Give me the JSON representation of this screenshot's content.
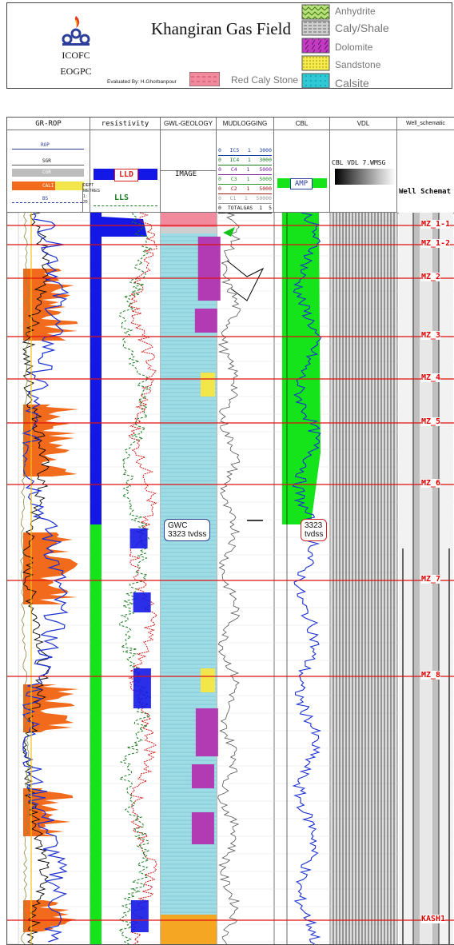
{
  "header": {
    "org_line1": "ICOFC",
    "org_line2": "EOGPC",
    "title": "Khangiran Gas Field",
    "evaluated_by": "Evaluated By: H.Ghorbanpour",
    "legend": [
      {
        "label": "Anhydrite",
        "color": "#8fd14f"
      },
      {
        "label": "Caly/Shale",
        "color": "#bdbdbd"
      },
      {
        "label": "Dolomite",
        "color": "#b23ab2"
      },
      {
        "label": "Sandstone",
        "color": "#f3e64a"
      },
      {
        "label": "Calsite",
        "color": "#33c6d4"
      },
      {
        "label": "Red Caly Stone",
        "color": "#f08a9c"
      }
    ]
  },
  "tracks": {
    "gr_rop": {
      "title": "GR-ROP",
      "curves": [
        "ROP",
        "SGR",
        "CGR",
        "CALI",
        "BS"
      ],
      "depth_label": "DEPT METRES",
      "depth_scale": "1 : 20"
    },
    "resistivity": {
      "title": "resistivity",
      "curve1": "LLD",
      "curve2": "LLS"
    },
    "geology": {
      "title": "GWL-GEOLOGY",
      "curve": "IMAGE"
    },
    "mudlogging": {
      "title": "MUDLOGGING",
      "rows": [
        {
          "left": "0",
          "name": "IC5",
          "scale": "1",
          "right": "3000",
          "color": "#1a3fa0"
        },
        {
          "left": "0",
          "name": "IC4",
          "scale": "1",
          "right": "3000",
          "color": "#1a7a20"
        },
        {
          "left": "0",
          "name": "C4",
          "scale": "1",
          "right": "5000",
          "color": "#7a1aa0"
        },
        {
          "left": "0",
          "name": "C3",
          "scale": "1",
          "right": "5000",
          "color": "#2a9a2a"
        },
        {
          "left": "0",
          "name": "C2",
          "scale": "1",
          "right": "5000",
          "color": "#a01a1a"
        },
        {
          "left": "0",
          "name": "C1",
          "scale": "1",
          "right": "50000",
          "color": "#999999"
        },
        {
          "left": "0",
          "name": "TOTALGAS",
          "scale": "1",
          "right": "5",
          "color": "#111111"
        }
      ]
    },
    "cbl": {
      "title": "CBL",
      "curve": "AMP"
    },
    "vdl": {
      "title": "VDL",
      "curve": "CBL VDL 7.WMSG"
    },
    "well": {
      "title": "Well_schematic",
      "curve": "Well Schemat"
    }
  },
  "zones": [
    {
      "label": "MZ_1-1"
    },
    {
      "label": "MZ_1-2"
    },
    {
      "label": "MZ_2"
    },
    {
      "label": "MZ_3"
    },
    {
      "label": "MZ_4"
    },
    {
      "label": "MZ_5"
    },
    {
      "label": "MZ_6"
    },
    {
      "label": "MZ_7"
    },
    {
      "label": "MZ_8"
    },
    {
      "label": "KASH1"
    }
  ],
  "annotations": {
    "gwc_line1": "GWC",
    "gwc_line2": "3323 tvdss",
    "cbl_line1": "3323",
    "cbl_line2": "tvdss"
  },
  "colors": {
    "zone_line": "#dd1111",
    "gr_fill": "#f26a1b",
    "calcite": "#9fdde6",
    "dolomite": "#b23ab2"
  }
}
